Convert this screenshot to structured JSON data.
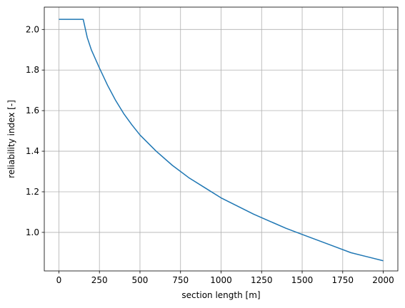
{
  "chart_data": {
    "type": "line",
    "title": "",
    "xlabel": "section length [m]",
    "ylabel": "reliability index [-]",
    "xlim": [
      -90,
      2090
    ],
    "ylim": [
      0.81,
      2.11
    ],
    "grid": true,
    "legend": "none",
    "x_ticks": [
      0,
      250,
      500,
      750,
      1000,
      1250,
      1500,
      1750,
      2000
    ],
    "x_tick_labels": [
      "0",
      "250",
      "500",
      "750",
      "1000",
      "1250",
      "1500",
      "1750",
      "2000"
    ],
    "y_ticks": [
      1.0,
      1.2,
      1.4,
      1.6,
      1.8,
      2.0
    ],
    "y_tick_labels": [
      "1.0",
      "1.2",
      "1.4",
      "1.6",
      "1.8",
      "2.0"
    ],
    "colors": {
      "line": "#1f77b4",
      "grid": "#b0b0b0",
      "axes": "#000000"
    },
    "series": [
      {
        "x": [
          0,
          50,
          100,
          150,
          175,
          200,
          250,
          300,
          350,
          400,
          450,
          500,
          600,
          700,
          800,
          900,
          1000,
          1100,
          1200,
          1300,
          1400,
          1500,
          1600,
          1700,
          1800,
          1900,
          2000
        ],
        "values": [
          2.05,
          2.05,
          2.05,
          2.05,
          1.96,
          1.9,
          1.81,
          1.725,
          1.65,
          1.585,
          1.53,
          1.48,
          1.4,
          1.33,
          1.27,
          1.22,
          1.17,
          1.13,
          1.09,
          1.055,
          1.02,
          0.99,
          0.96,
          0.93,
          0.9,
          0.88,
          0.86
        ]
      }
    ]
  }
}
